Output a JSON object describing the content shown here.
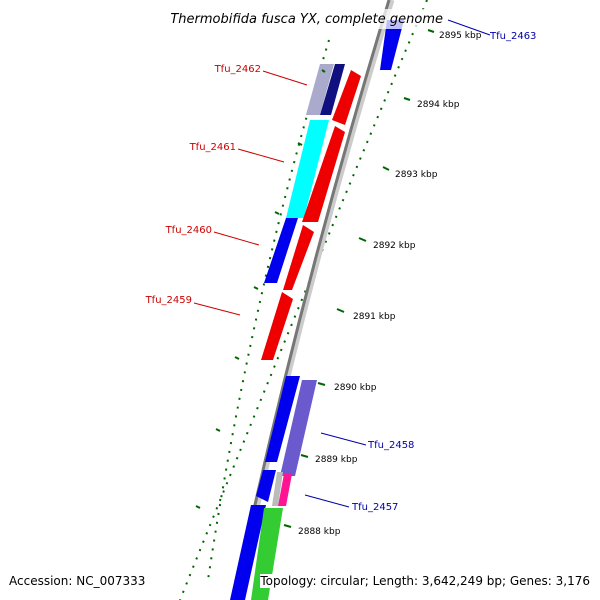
{
  "header": {
    "title": "Thermobifida fusca YX, complete genome"
  },
  "footer": {
    "accession": "Accession: NC_007333",
    "topology": "Topology: circular; Length: 3,642,249 bp; Genes: 3,176"
  },
  "colors": {
    "reverse_label": "#cc0000",
    "forward_label": "#0000aa",
    "backbone": "#777777",
    "tick": "#006600"
  },
  "kbp_ticks": [
    {
      "text": "2895 kbp"
    },
    {
      "text": "2894 kbp"
    },
    {
      "text": "2893 kbp"
    },
    {
      "text": "2892 kbp"
    },
    {
      "text": "2891 kbp"
    },
    {
      "text": "2890 kbp"
    },
    {
      "text": "2889 kbp"
    },
    {
      "text": "2888 kbp"
    }
  ],
  "gene_labels": [
    {
      "name": "Tfu_2463",
      "strand": "forward"
    },
    {
      "name": "Tfu_2462",
      "strand": "reverse"
    },
    {
      "name": "Tfu_2461",
      "strand": "reverse"
    },
    {
      "name": "Tfu_2460",
      "strand": "reverse"
    },
    {
      "name": "Tfu_2459",
      "strand": "reverse"
    },
    {
      "name": "Tfu_2458",
      "strand": "forward"
    },
    {
      "name": "Tfu_2457",
      "strand": "forward"
    }
  ]
}
